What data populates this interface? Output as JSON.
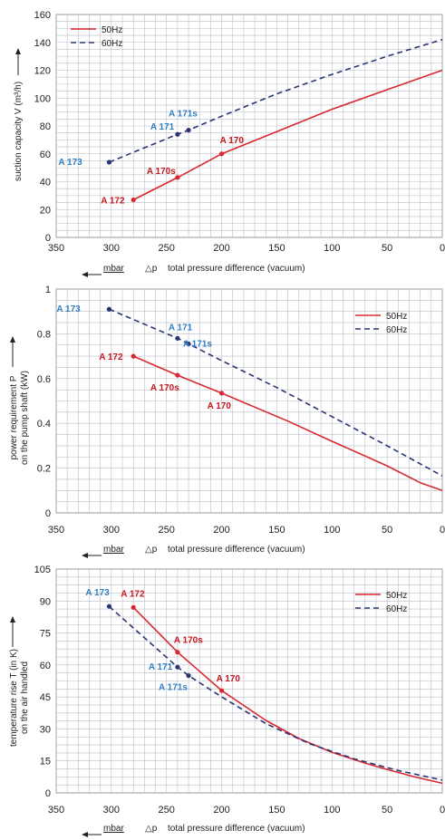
{
  "colors": {
    "red": "#d9282f",
    "blue": "#2a3575",
    "label_blue": "#2f7fc4",
    "label_red": "#c8161d"
  },
  "chart_data": [
    {
      "type": "line",
      "title": "",
      "ylabel": "suction capacity V (m³/h)",
      "xlabel": "total pressure difference (vacuum)",
      "x_symbol": "△p",
      "x_unit": "mbar",
      "xlim": [
        350,
        0
      ],
      "ylim": [
        0,
        160
      ],
      "xticks": [
        "350",
        "300",
        "250",
        "200",
        "150",
        "100",
        "50",
        "0"
      ],
      "yticks": [
        "0",
        "20",
        "40",
        "60",
        "80",
        "100",
        "120",
        "140",
        "160"
      ],
      "legend": "top-left",
      "series": [
        {
          "name": "50Hz",
          "style": "solid",
          "color": "#d9282f",
          "x": [
            280,
            240,
            200,
            150,
            100,
            50,
            0
          ],
          "y": [
            27,
            43,
            60,
            76,
            92,
            106,
            120
          ]
        },
        {
          "name": "60Hz",
          "style": "dashed",
          "color": "#2a3575",
          "x": [
            302,
            240,
            230,
            200,
            150,
            100,
            50,
            0
          ],
          "y": [
            54,
            74,
            77,
            87,
            103,
            117,
            130,
            142
          ]
        }
      ],
      "points": [
        {
          "label": "A 172",
          "x": 280,
          "y": 27,
          "series": "50Hz"
        },
        {
          "label": "A 170s",
          "x": 240,
          "y": 43,
          "series": "50Hz"
        },
        {
          "label": "A 170",
          "x": 200,
          "y": 60,
          "series": "50Hz"
        },
        {
          "label": "A 173",
          "x": 302,
          "y": 54,
          "series": "60Hz"
        },
        {
          "label": "A 171",
          "x": 240,
          "y": 74,
          "series": "60Hz"
        },
        {
          "label": "A 171s",
          "x": 230,
          "y": 77,
          "series": "60Hz"
        }
      ]
    },
    {
      "type": "line",
      "title": "",
      "ylabel": "power requirement P on the pump shaft (kW)",
      "xlabel": "total pressure difference (vacuum)",
      "x_symbol": "△p",
      "x_unit": "mbar",
      "xlim": [
        350,
        0
      ],
      "ylim": [
        0,
        1
      ],
      "xticks": [
        "350",
        "300",
        "250",
        "200",
        "150",
        "100",
        "50",
        "0"
      ],
      "yticks": [
        "0",
        "0.2",
        "0.4",
        "0.6",
        "0.8",
        "1"
      ],
      "legend": "top-right",
      "series": [
        {
          "name": "50Hz",
          "style": "solid",
          "color": "#d9282f",
          "x": [
            280,
            240,
            200,
            140,
            100,
            50,
            20,
            0
          ],
          "y": [
            0.7,
            0.615,
            0.535,
            0.41,
            0.32,
            0.21,
            0.135,
            0.1
          ]
        },
        {
          "name": "60Hz",
          "style": "dashed",
          "color": "#2a3575",
          "x": [
            302,
            240,
            230,
            200,
            150,
            100,
            50,
            0
          ],
          "y": [
            0.91,
            0.78,
            0.755,
            0.68,
            0.56,
            0.43,
            0.3,
            0.165
          ]
        }
      ],
      "points": [
        {
          "label": "A 172",
          "x": 280,
          "y": 0.7,
          "series": "50Hz"
        },
        {
          "label": "A 170s",
          "x": 240,
          "y": 0.615,
          "series": "50Hz"
        },
        {
          "label": "A 170",
          "x": 200,
          "y": 0.535,
          "series": "50Hz"
        },
        {
          "label": "A 173",
          "x": 302,
          "y": 0.91,
          "series": "60Hz"
        },
        {
          "label": "A 171",
          "x": 240,
          "y": 0.78,
          "series": "60Hz"
        },
        {
          "label": "A 171s",
          "x": 230,
          "y": 0.755,
          "series": "60Hz"
        }
      ]
    },
    {
      "type": "line",
      "title": "",
      "ylabel": "temperature rise T (in K) on the air handled",
      "xlabel": "total pressure difference (vacuum)",
      "x_symbol": "△p",
      "x_unit": "mbar",
      "xlim": [
        350,
        0
      ],
      "ylim": [
        0,
        105
      ],
      "xticks": [
        "350",
        "300",
        "250",
        "200",
        "150",
        "100",
        "50",
        "0"
      ],
      "yticks": [
        "0",
        "15",
        "30",
        "45",
        "60",
        "75",
        "90",
        "105"
      ],
      "legend": "top-right",
      "series": [
        {
          "name": "50Hz",
          "style": "solid",
          "color": "#d9282f",
          "x": [
            280,
            240,
            200,
            160,
            130,
            100,
            70,
            50,
            25,
            0
          ],
          "y": [
            87,
            66,
            48,
            34,
            25.5,
            19,
            14,
            11,
            7.5,
            4.5
          ]
        },
        {
          "name": "60Hz",
          "style": "dashed",
          "color": "#2a3575",
          "x": [
            302,
            240,
            230,
            200,
            160,
            120,
            80,
            40,
            0
          ],
          "y": [
            87.5,
            59,
            55,
            45,
            32.5,
            23,
            16,
            10.5,
            6
          ]
        }
      ],
      "points": [
        {
          "label": "A 172",
          "x": 280,
          "y": 87,
          "series": "50Hz"
        },
        {
          "label": "A 170s",
          "x": 240,
          "y": 66,
          "series": "50Hz"
        },
        {
          "label": "A 170",
          "x": 200,
          "y": 48,
          "series": "50Hz"
        },
        {
          "label": "A 173",
          "x": 302,
          "y": 87.5,
          "series": "60Hz"
        },
        {
          "label": "A 171",
          "x": 240,
          "y": 59,
          "series": "60Hz"
        },
        {
          "label": "A 171s",
          "x": 230,
          "y": 55,
          "series": "60Hz"
        }
      ]
    }
  ]
}
